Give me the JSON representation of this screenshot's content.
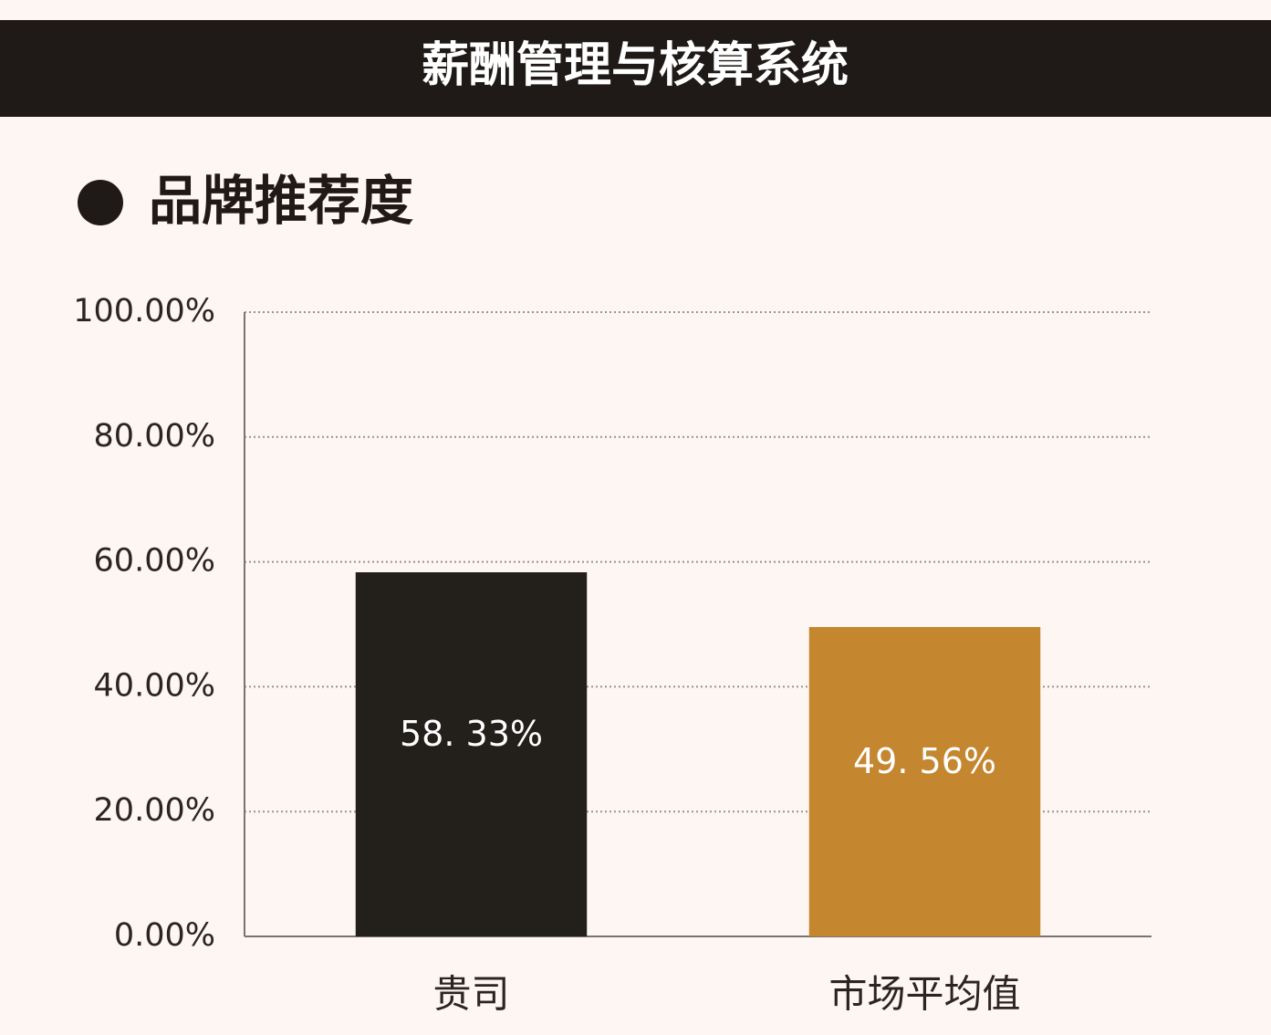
{
  "header": {
    "title": "薪酬管理与核算系统"
  },
  "chart_data": {
    "type": "bar",
    "title": "品牌推荐度",
    "categories": [
      "贵司",
      "市场平均值"
    ],
    "values": [
      58.33,
      49.56
    ],
    "value_labels": [
      "58. 33%",
      "49. 56%"
    ],
    "colors": [
      "#231f1b",
      "#c4862f"
    ],
    "ylim": [
      0,
      100
    ],
    "yticks": [
      {
        "value": 0,
        "label": "0.00%"
      },
      {
        "value": 20,
        "label": "20.00%"
      },
      {
        "value": 40,
        "label": "40.00%"
      },
      {
        "value": 60,
        "label": "60.00%"
      },
      {
        "value": 80,
        "label": "80.00%"
      },
      {
        "value": 100,
        "label": "100.00%"
      }
    ],
    "grid": true
  }
}
